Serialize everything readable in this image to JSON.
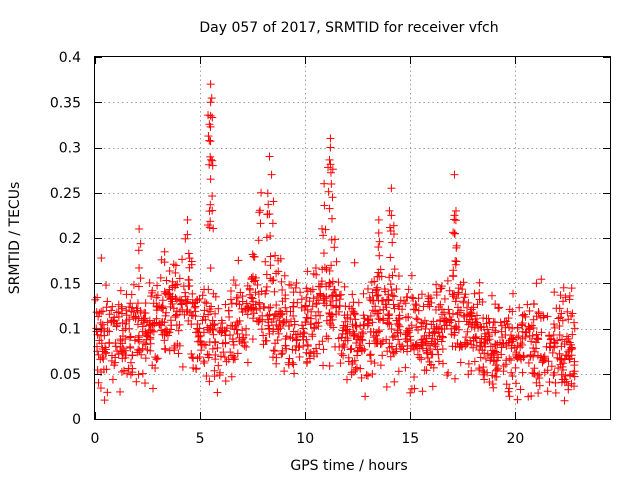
{
  "chart_data": {
    "type": "scatter",
    "title": "Day 057 of 2017, SRMTID for receiver vfch",
    "xlabel": "GPS time / hours",
    "ylabel": "SRMTID / TECUs",
    "xlim": [
      0,
      24.5
    ],
    "ylim": [
      0,
      0.4
    ],
    "x_ticks": [
      0,
      5,
      10,
      15,
      20
    ],
    "x_tick_labels": [
      "0",
      "5",
      "10",
      "15",
      "20"
    ],
    "y_ticks": [
      0,
      0.05,
      0.1,
      0.15,
      0.2,
      0.25,
      0.3,
      0.35,
      0.4
    ],
    "y_tick_labels": [
      "0",
      "0.05",
      "0.1",
      "0.15",
      "0.2",
      "0.25",
      "0.3",
      "0.35",
      "0.4"
    ],
    "grid": true,
    "marker": "+",
    "color": "#ff0000",
    "series": [
      {
        "name": "SRMTID",
        "x_start": 0.0,
        "x_end": 22.8,
        "baseline_mean": 0.09,
        "peaks": [
          {
            "x": 2.1,
            "y": 0.21
          },
          {
            "x": 4.4,
            "y": 0.22
          },
          {
            "x": 5.5,
            "y": 0.37
          },
          {
            "x": 5.5,
            "y": 0.35
          },
          {
            "x": 5.5,
            "y": 0.335
          },
          {
            "x": 5.6,
            "y": 0.28
          },
          {
            "x": 5.5,
            "y": 0.265
          },
          {
            "x": 8.3,
            "y": 0.29
          },
          {
            "x": 8.4,
            "y": 0.27
          },
          {
            "x": 7.9,
            "y": 0.25
          },
          {
            "x": 11.2,
            "y": 0.31
          },
          {
            "x": 11.2,
            "y": 0.3
          },
          {
            "x": 10.9,
            "y": 0.26
          },
          {
            "x": 11.3,
            "y": 0.245
          },
          {
            "x": 14.1,
            "y": 0.255
          },
          {
            "x": 13.5,
            "y": 0.22
          },
          {
            "x": 14.1,
            "y": 0.225
          },
          {
            "x": 17.1,
            "y": 0.27
          },
          {
            "x": 17.1,
            "y": 0.225
          },
          {
            "x": 17.1,
            "y": 0.205
          },
          {
            "x": 21.0,
            "y": 0.15
          },
          {
            "x": 22.3,
            "y": 0.145
          }
        ]
      }
    ]
  }
}
